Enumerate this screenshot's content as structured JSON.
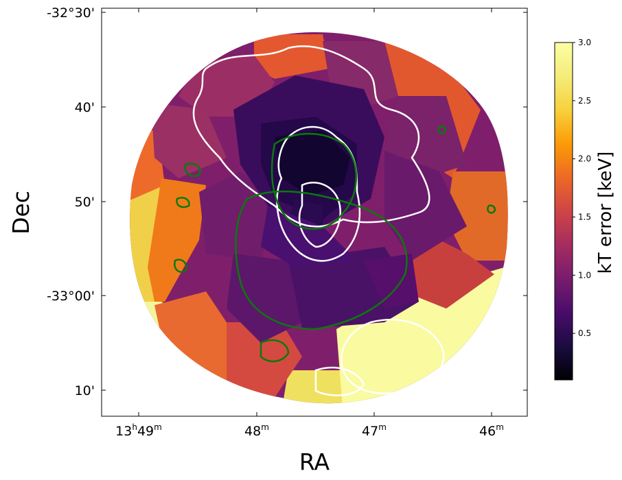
{
  "chart_data": {
    "type": "heatmap",
    "title": "",
    "xlabel": "RA",
    "ylabel": "Dec",
    "x_ticks": [
      {
        "h": "13",
        "hsup": "h",
        "m": "49",
        "msup": "m"
      },
      {
        "m": "48",
        "msup": "m"
      },
      {
        "m": "47",
        "msup": "m"
      },
      {
        "m": "46",
        "msup": "m"
      }
    ],
    "y_ticks": [
      "-32°30'",
      "40'",
      "50'",
      "-33°00'",
      "10'"
    ],
    "colorbar": {
      "label": "kT error [keV]",
      "range": [
        0.1,
        3.0
      ],
      "ticks": [
        "0.5",
        "1.0",
        "1.5",
        "2.0",
        "2.5",
        "3.0"
      ],
      "tick_values": [
        0.5,
        1.0,
        1.5,
        2.0,
        2.5,
        3.0
      ],
      "colormap": "inferno"
    },
    "region_values_keV": [
      3.0,
      2.5,
      2.2,
      2.0,
      1.8,
      1.6,
      1.5,
      1.3,
      1.1,
      1.0,
      0.9,
      0.8,
      0.7,
      0.5,
      0.3,
      0.2
    ],
    "contours": [
      {
        "color": "#ffffff"
      },
      {
        "color": "#008000"
      }
    ]
  }
}
